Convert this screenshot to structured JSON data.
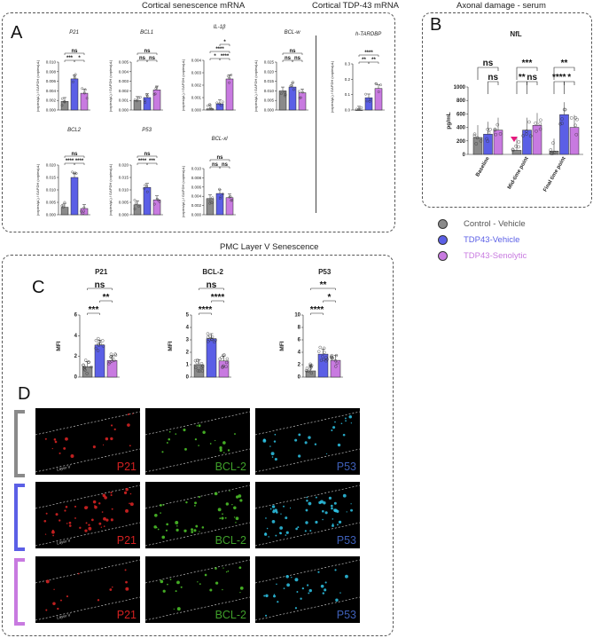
{
  "colors": {
    "control": "#8a8a8a",
    "tdp_vehicle": "#5b5fe6",
    "tdp_senolytic": "#c87ae0",
    "arrow": "#e6197d",
    "p21_text": "#d42020",
    "bcl2_text": "#3fa02a",
    "p53_text": "#3e5fb8"
  },
  "headers": {
    "cortical_senescence": "Cortical senescence mRNA",
    "cortical_tdp43": "Cortical TDP-43 mRNA",
    "axonal_damage": "Axonal damage - serum",
    "pmc_layer": "PMC Layer V Senescence"
  },
  "panels": {
    "a": "A",
    "b": "B",
    "c": "C",
    "d": "D"
  },
  "ylabel_mrna": "(copies/µL) / GAPDH (copies/µL)",
  "legend": [
    {
      "label": "Control - Vehicle",
      "color": "#8a8a8a"
    },
    {
      "label": "TDP43-Vehicle",
      "color": "#5b5fe6"
    },
    {
      "label": "TDP43-Senolytic",
      "color": "#c87ae0"
    }
  ],
  "chart_data": [
    {
      "id": "p21",
      "panel": "A",
      "type": "bar",
      "title": "P21",
      "categories": [
        "Control - Vehicle",
        "TDP43-Vehicle",
        "TDP43-Senolytic"
      ],
      "values": [
        0.0018,
        0.0065,
        0.0035
      ],
      "yticks": [
        "0.000",
        "0.002",
        "0.004",
        "0.006",
        "0.008",
        "0.010"
      ],
      "ylim": [
        0,
        0.01
      ],
      "sig": [
        {
          "label": "ns",
          "a": 0,
          "b": 2,
          "level": 2
        },
        {
          "label": "***",
          "a": 0,
          "b": 1,
          "level": 1
        },
        {
          "label": "*",
          "a": 1,
          "b": 2,
          "level": 1
        }
      ]
    },
    {
      "id": "bcl1",
      "panel": "A",
      "type": "bar",
      "title": "BCL1",
      "categories": [
        "Control - Vehicle",
        "TDP43-Vehicle",
        "TDP43-Senolytic"
      ],
      "values": [
        0.001,
        0.0013,
        0.0021
      ],
      "yticks": [
        "0.000",
        "0.001",
        "0.002",
        "0.003",
        "0.004",
        "0.005"
      ],
      "ylim": [
        0,
        0.005
      ],
      "sig": [
        {
          "label": "ns",
          "a": 0,
          "b": 2,
          "level": 2
        },
        {
          "label": "ns",
          "a": 0,
          "b": 1,
          "level": 1
        },
        {
          "label": "ns",
          "a": 1,
          "b": 2,
          "level": 1
        }
      ]
    },
    {
      "id": "il1b",
      "panel": "A",
      "type": "bar",
      "title": "IL-1β",
      "categories": [
        "Control - Vehicle",
        "TDP43-Vehicle",
        "TDP43-Senolytic"
      ],
      "values": [
        0.0001,
        0.0005,
        0.0025
      ],
      "yticks": [
        "0.000",
        "0.001",
        "0.002",
        "0.003",
        "0.004"
      ],
      "ylim": [
        0,
        0.004
      ],
      "sig": [
        {
          "label": "*",
          "a": 1,
          "b": 2,
          "level": 3
        },
        {
          "label": "****",
          "a": 0,
          "b": 2,
          "level": 2
        },
        {
          "label": "*",
          "a": 0,
          "b": 1,
          "level": 1
        },
        {
          "label": "****",
          "a": 1,
          "b": 2,
          "level": 1
        }
      ]
    },
    {
      "id": "bclw",
      "panel": "A",
      "type": "bar",
      "title": "BCL-w",
      "categories": [
        "Control - Vehicle",
        "TDP43-Vehicle",
        "TDP43-Senolytic"
      ],
      "values": [
        0.01,
        0.012,
        0.009
      ],
      "yticks": [
        "0.000",
        "0.005",
        "0.010",
        "0.015",
        "0.020",
        "0.025"
      ],
      "ylim": [
        0,
        0.025
      ],
      "sig": [
        {
          "label": "ns",
          "a": 0,
          "b": 2,
          "level": 2
        },
        {
          "label": "ns",
          "a": 0,
          "b": 1,
          "level": 1
        },
        {
          "label": "ns",
          "a": 1,
          "b": 2,
          "level": 1
        }
      ]
    },
    {
      "id": "htardbp",
      "panel": "A",
      "type": "bar",
      "title": "h-TARDBP",
      "categories": [
        "Control - Vehicle",
        "TDP43-Vehicle",
        "TDP43-Senolytic"
      ],
      "values": [
        0.0,
        0.08,
        0.14
      ],
      "yticks": [
        "0.0",
        "0.1",
        "0.2",
        "0.3"
      ],
      "ylim": [
        0,
        0.3
      ],
      "sig": [
        {
          "label": "****",
          "a": 0,
          "b": 2,
          "level": 2
        },
        {
          "label": "**",
          "a": 0,
          "b": 1,
          "level": 1
        },
        {
          "label": "**",
          "a": 1,
          "b": 2,
          "level": 1
        }
      ]
    },
    {
      "id": "bcl2",
      "panel": "A",
      "type": "bar",
      "title": "BCL2",
      "categories": [
        "Control - Vehicle",
        "TDP43-Vehicle",
        "TDP43-Senolytic"
      ],
      "values": [
        0.003,
        0.015,
        0.0025
      ],
      "yticks": [
        "0.000",
        "0.005",
        "0.010",
        "0.015",
        "0.020"
      ],
      "ylim": [
        0,
        0.02
      ],
      "sig": [
        {
          "label": "ns",
          "a": 0,
          "b": 2,
          "level": 2
        },
        {
          "label": "****",
          "a": 0,
          "b": 1,
          "level": 1
        },
        {
          "label": "****",
          "a": 1,
          "b": 2,
          "level": 1
        }
      ]
    },
    {
      "id": "p53",
      "panel": "A",
      "type": "bar",
      "title": "P53",
      "categories": [
        "Control - Vehicle",
        "TDP43-Vehicle",
        "TDP43-Senolytic"
      ],
      "values": [
        0.004,
        0.011,
        0.006
      ],
      "yticks": [
        "0.000",
        "0.005",
        "0.010",
        "0.015",
        "0.020"
      ],
      "ylim": [
        0,
        0.02
      ],
      "sig": [
        {
          "label": "ns",
          "a": 0,
          "b": 2,
          "level": 2
        },
        {
          "label": "****",
          "a": 0,
          "b": 1,
          "level": 1
        },
        {
          "label": "***",
          "a": 1,
          "b": 2,
          "level": 1
        }
      ]
    },
    {
      "id": "bclxl",
      "panel": "A",
      "type": "bar",
      "title": "BCL-xl",
      "categories": [
        "Control - Vehicle",
        "TDP43-Vehicle",
        "TDP43-Senolytic"
      ],
      "values": [
        0.0035,
        0.0046,
        0.0037
      ],
      "yticks": [
        "0.000",
        "0.002",
        "0.004",
        "0.006",
        "0.008",
        "0.010"
      ],
      "ylim": [
        0,
        0.01
      ],
      "sig": [
        {
          "label": "ns",
          "a": 0,
          "b": 2,
          "level": 2
        },
        {
          "label": "ns",
          "a": 0,
          "b": 1,
          "level": 1
        },
        {
          "label": "ns",
          "a": 1,
          "b": 2,
          "level": 1
        }
      ]
    },
    {
      "id": "nfl",
      "panel": "B",
      "type": "bar",
      "title": "NfL",
      "ylabel": "pg/mL",
      "groups": [
        "Baseline",
        "Mid-time point",
        "Final time point"
      ],
      "categories": [
        "Control - Vehicle",
        "TDP43-Vehicle",
        "TDP43-Senolytic"
      ],
      "series": [
        {
          "name": "Control - Vehicle",
          "values": [
            250,
            60,
            50
          ]
        },
        {
          "name": "TDP43-Vehicle",
          "values": [
            300,
            360,
            590
          ]
        },
        {
          "name": "TDP43-Senolytic",
          "values": [
            360,
            430,
            400
          ]
        }
      ],
      "yticks": [
        "0",
        "200",
        "400",
        "600",
        "800",
        "1000"
      ],
      "ylim": [
        0,
        1000
      ],
      "sig": [
        {
          "label": "ns",
          "group": 0,
          "a": 0,
          "b": 2,
          "level": 2
        },
        {
          "label": "ns",
          "group": 0,
          "a": 1,
          "b": 2,
          "level": 1
        },
        {
          "label": "***",
          "group": 1,
          "a": 0,
          "b": 2,
          "level": 2
        },
        {
          "label": "**",
          "group": 1,
          "a": 0,
          "b": 1,
          "level": 1
        },
        {
          "label": "ns",
          "group": 1,
          "a": 1,
          "b": 2,
          "level": 1
        },
        {
          "label": "**",
          "group": 2,
          "a": 0,
          "b": 2,
          "level": 2
        },
        {
          "label": "****",
          "group": 2,
          "a": 0,
          "b": 1,
          "level": 1
        },
        {
          "label": "*",
          "group": 2,
          "a": 1,
          "b": 2,
          "level": 1
        }
      ]
    },
    {
      "id": "mfi_p21",
      "panel": "C",
      "type": "bar",
      "title": "P21",
      "ylabel": "MFI",
      "categories": [
        "Control - Vehicle",
        "TDP43-Vehicle",
        "TDP43-Senolytic"
      ],
      "values": [
        1.0,
        3.1,
        1.6
      ],
      "yticks": [
        "0",
        "2",
        "4",
        "6"
      ],
      "ylim": [
        0,
        6
      ],
      "sig": [
        {
          "label": "ns",
          "a": 0,
          "b": 2,
          "level": 3
        },
        {
          "label": "***",
          "a": 0,
          "b": 1,
          "level": 1
        },
        {
          "label": "**",
          "a": 1,
          "b": 2,
          "level": 2
        }
      ]
    },
    {
      "id": "mfi_bcl2",
      "panel": "C",
      "type": "bar",
      "title": "BCL-2",
      "ylabel": "MFI",
      "categories": [
        "Control - Vehicle",
        "TDP43-Vehicle",
        "TDP43-Senolytic"
      ],
      "values": [
        1.0,
        3.1,
        1.3
      ],
      "yticks": [
        "0",
        "1",
        "2",
        "3",
        "4",
        "5"
      ],
      "ylim": [
        0,
        5
      ],
      "sig": [
        {
          "label": "ns",
          "a": 0,
          "b": 2,
          "level": 3
        },
        {
          "label": "****",
          "a": 0,
          "b": 1,
          "level": 1
        },
        {
          "label": "****",
          "a": 1,
          "b": 2,
          "level": 2
        }
      ]
    },
    {
      "id": "mfi_p53",
      "panel": "C",
      "type": "bar",
      "title": "P53",
      "ylabel": "MFI",
      "categories": [
        "Control - Vehicle",
        "TDP43-Vehicle",
        "TDP43-Senolytic"
      ],
      "values": [
        1.0,
        3.7,
        2.7
      ],
      "yticks": [
        "0",
        "2",
        "4",
        "6",
        "8",
        "10"
      ],
      "ylim": [
        0,
        10
      ],
      "sig": [
        {
          "label": "**",
          "a": 0,
          "b": 2,
          "level": 3
        },
        {
          "label": "****",
          "a": 0,
          "b": 1,
          "level": 1
        },
        {
          "label": "*",
          "a": 1,
          "b": 2,
          "level": 2
        }
      ]
    }
  ],
  "micrographs": {
    "layer_label": "Layer V",
    "columns": [
      "P21",
      "BCL-2",
      "P53"
    ]
  }
}
